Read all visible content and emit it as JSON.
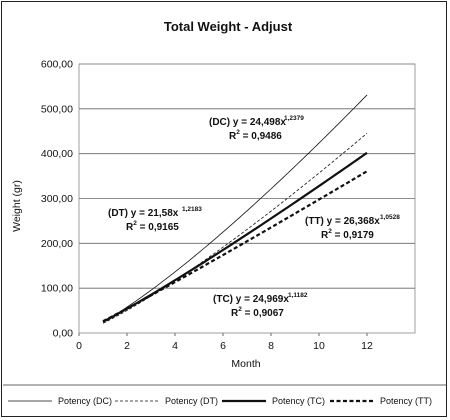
{
  "chart_data": {
    "type": "line",
    "title": "Total Weight - Adjust",
    "xlabel": "Month",
    "ylabel": "Weight (gr)",
    "xlim": [
      0,
      14
    ],
    "ylim": [
      0,
      600
    ],
    "x_ticks": [
      "0",
      "2",
      "4",
      "6",
      "8",
      "10",
      "12"
    ],
    "y_ticks": [
      "0,00",
      "100,00",
      "200,00",
      "300,00",
      "400,00",
      "500,00",
      "600,00"
    ],
    "grid": "horizontal",
    "legend_position": "bottom",
    "series": [
      {
        "name": "Potency (DC)",
        "coef": 24.498,
        "exp": 1.2379,
        "x_range": [
          1,
          12
        ],
        "eq_line1": "(DC) y = 24,498x",
        "eq_exp": "1,2379",
        "eq_line2": "R",
        "eq_r2": " = 0,9486",
        "style": "thin"
      },
      {
        "name": "Potency (DT)",
        "coef": 21.58,
        "exp": 1.2183,
        "x_range": [
          1,
          12
        ],
        "eq_line1": "(DT) y = 21,58x",
        "eq_exp": "1,2183",
        "eq_line2": "R",
        "eq_r2": " = 0,9165",
        "style": "thin-dashed"
      },
      {
        "name": "Potency (TC)",
        "coef": 24.969,
        "exp": 1.1182,
        "x_range": [
          1,
          12
        ],
        "eq_line1": "(TC) y = 24,969x",
        "eq_exp": "1,1182",
        "eq_line2": "R",
        "eq_r2": " = 0,9067",
        "style": "thick"
      },
      {
        "name": "Potency (TT)",
        "coef": 26.368,
        "exp": 1.0528,
        "x_range": [
          1,
          12
        ],
        "eq_line1": "(TT) y = 26,368x",
        "eq_exp": "1,0528",
        "eq_line2": "R",
        "eq_r2": " = 0,9179",
        "style": "thick-dashed"
      }
    ]
  }
}
